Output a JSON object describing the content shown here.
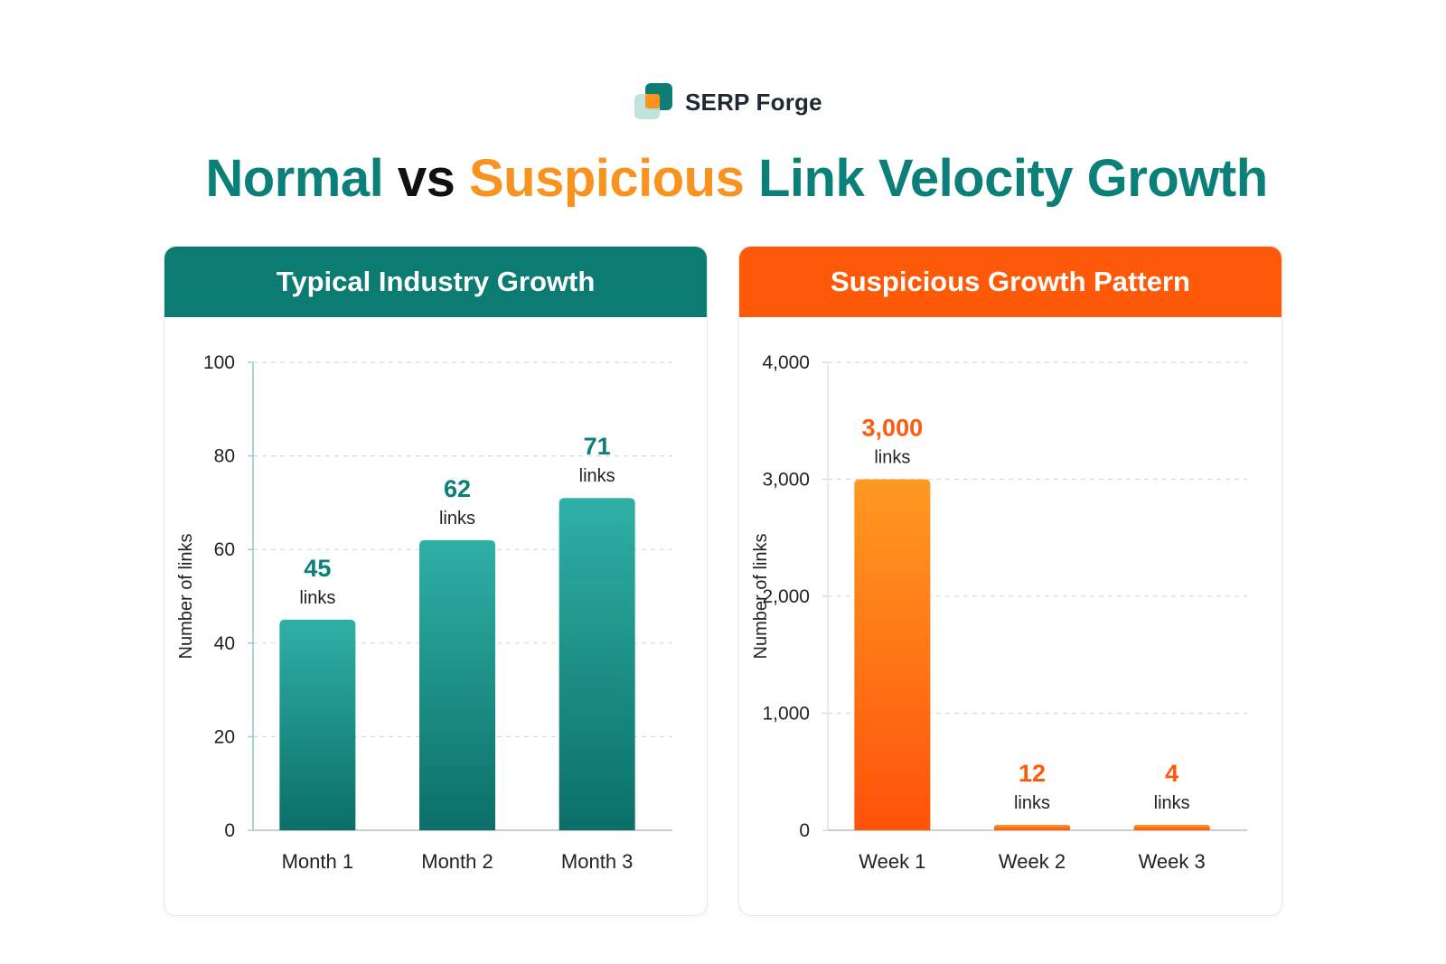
{
  "brand": {
    "name": "SERP Forge"
  },
  "headline": {
    "part1": "Normal",
    "part2": "vs",
    "part3": "Suspicious",
    "part4": "Link Velocity Growth"
  },
  "colors": {
    "teal": "#0b8078",
    "orange": "#f7931e",
    "orange_header": "#ff5a0a",
    "teal_header": "#0c7b72"
  },
  "chart_data": [
    {
      "type": "bar",
      "title": "Typical Industry Growth",
      "xlabel": "",
      "ylabel": "Number of links",
      "categories": [
        "Month 1",
        "Month 2",
        "Month 3"
      ],
      "values": [
        45,
        62,
        71
      ],
      "data_labels": [
        "45",
        "62",
        "71"
      ],
      "data_label_unit": "links",
      "ylim": [
        0,
        100
      ],
      "yticks": [
        0,
        20,
        40,
        60,
        80,
        100
      ],
      "ytick_labels": [
        "0",
        "20",
        "40",
        "60",
        "80",
        "100"
      ],
      "grid": true,
      "color": "#1f9e93",
      "label_color": "#0b8078"
    },
    {
      "type": "bar",
      "title": "Suspicious Growth Pattern",
      "xlabel": "",
      "ylabel": "Number of links",
      "categories": [
        "Week 1",
        "Week 2",
        "Week 3"
      ],
      "values": [
        3000,
        12,
        4
      ],
      "data_labels": [
        "3,000",
        "12",
        "4"
      ],
      "data_label_unit": "links",
      "ylim": [
        0,
        4000
      ],
      "yticks": [
        0,
        1000,
        2000,
        3000,
        4000
      ],
      "ytick_labels": [
        "0",
        "1,000",
        "2,000",
        "3,000",
        "4,000"
      ],
      "grid": true,
      "color": "#ff6a10",
      "label_color": "#ff5a0a"
    }
  ]
}
